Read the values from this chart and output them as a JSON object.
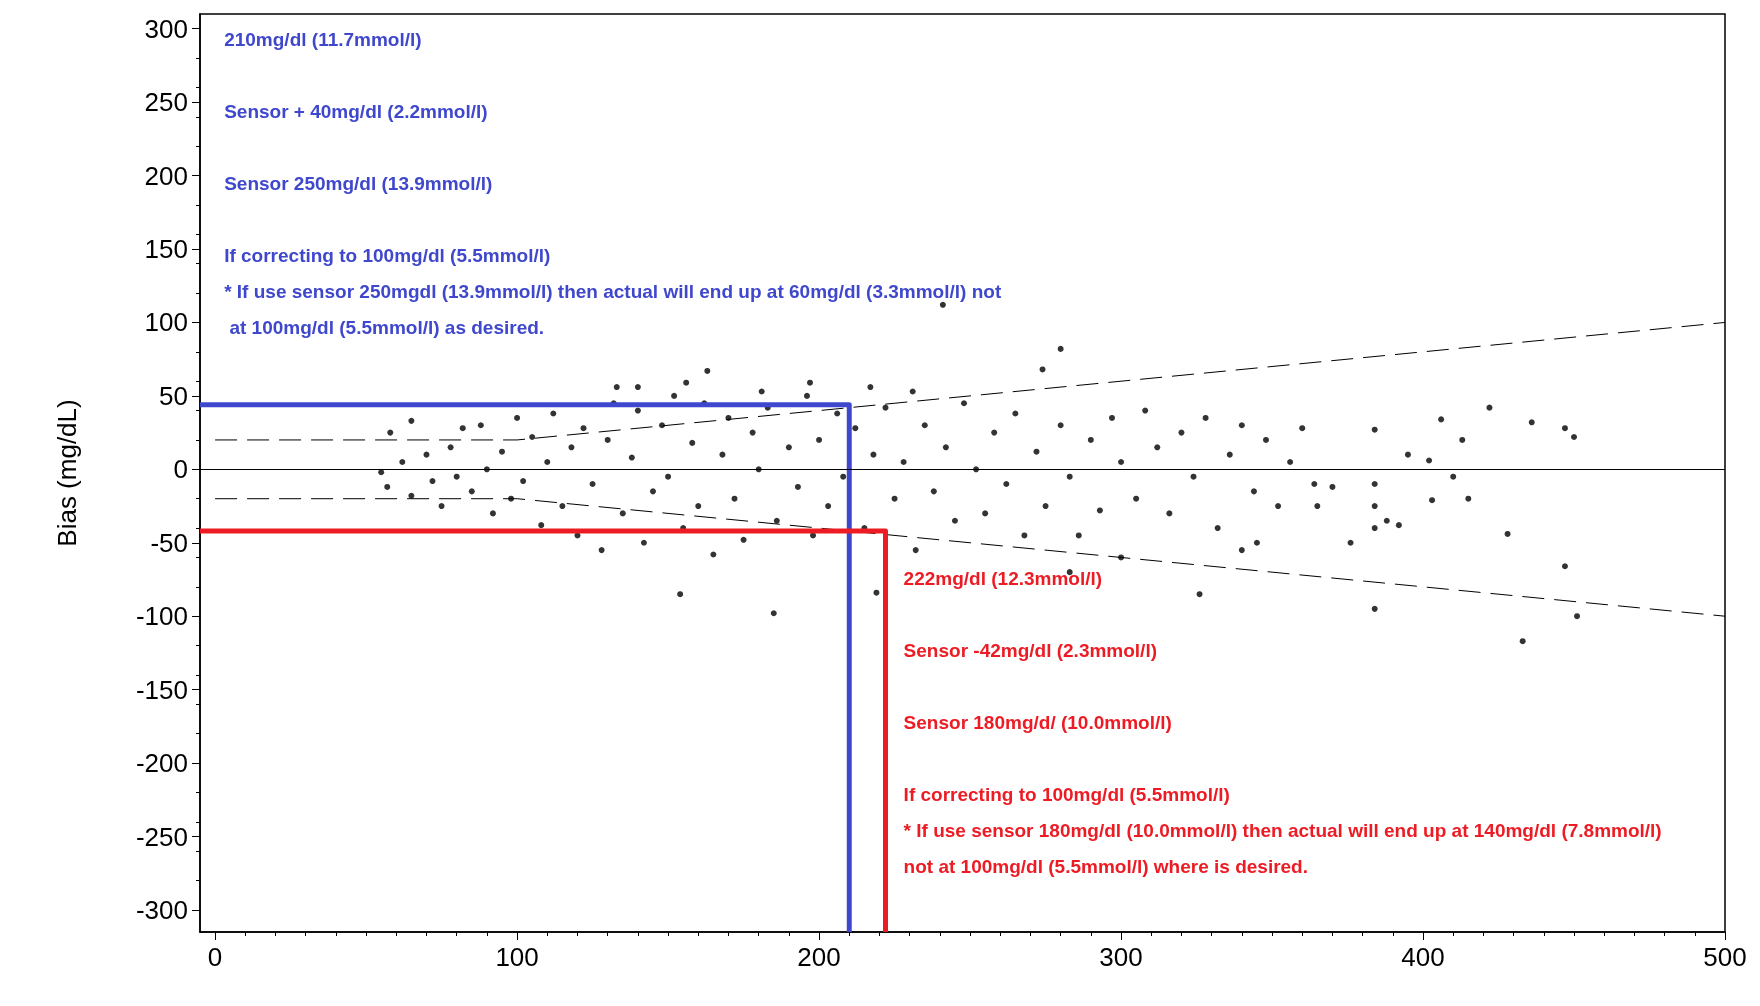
{
  "chart_data": {
    "type": "scatter",
    "ylabel": "Bias (mg/dL)",
    "xlim": [
      -5,
      500
    ],
    "xticks": [
      0,
      100,
      200,
      300,
      400,
      500
    ],
    "ylim": [
      -315,
      310
    ],
    "yticks": [
      -300,
      -250,
      -200,
      -150,
      -100,
      -50,
      0,
      50,
      100,
      150,
      200,
      250,
      300
    ],
    "grid": false,
    "marker": "circle",
    "ref_lines": [
      {
        "axis": "y",
        "value": 0,
        "color": "#000000",
        "line_style": "solid"
      }
    ],
    "series": [
      {
        "color": "#000000",
        "x": [
          55,
          57,
          58,
          62,
          65,
          65,
          70,
          72,
          75,
          78,
          80,
          82,
          85,
          88,
          90,
          92,
          95,
          98,
          100,
          102,
          105,
          108,
          110,
          112,
          115,
          118,
          120,
          122,
          125,
          128,
          130,
          132,
          135,
          138,
          140,
          142,
          145,
          148,
          150,
          152,
          155,
          158,
          160,
          162,
          165,
          168,
          170,
          172,
          175,
          178,
          180,
          183,
          186,
          190,
          193,
          196,
          198,
          200,
          203,
          206,
          208,
          212,
          215,
          218,
          222,
          225,
          228,
          232,
          235,
          238,
          242,
          245,
          248,
          252,
          255,
          258,
          262,
          265,
          268,
          272,
          275,
          280,
          283,
          286,
          290,
          293,
          297,
          300,
          305,
          308,
          312,
          316,
          320,
          324,
          328,
          332,
          336,
          340,
          344,
          348,
          352,
          356,
          360,
          364,
          241,
          280,
          274,
          163,
          156,
          133,
          140,
          181,
          197,
          217,
          231,
          422,
          436,
          406,
          447,
          450,
          413,
          384,
          395,
          402,
          410,
          415,
          384,
          384,
          384,
          388,
          392,
          384,
          403,
          428,
          433,
          447,
          451,
          154,
          185,
          219,
          283,
          300,
          326,
          340,
          345,
          365,
          370,
          376
        ],
        "values": [
          -2,
          -12,
          25,
          5,
          -18,
          33,
          10,
          -8,
          -25,
          15,
          -5,
          28,
          -15,
          30,
          0,
          -30,
          12,
          -20,
          35,
          -8,
          22,
          -38,
          5,
          38,
          -25,
          15,
          -45,
          28,
          -10,
          -55,
          20,
          45,
          -30,
          8,
          40,
          -50,
          -15,
          30,
          -5,
          50,
          -40,
          18,
          -25,
          45,
          -58,
          10,
          35,
          -20,
          -48,
          25,
          0,
          42,
          -35,
          15,
          -12,
          50,
          -45,
          20,
          -25,
          38,
          -5,
          28,
          -40,
          10,
          42,
          -20,
          5,
          -55,
          30,
          -15,
          15,
          -35,
          45,
          0,
          -30,
          25,
          -10,
          38,
          -45,
          12,
          -25,
          30,
          -5,
          -45,
          20,
          -28,
          35,
          5,
          -20,
          40,
          15,
          -30,
          25,
          -5,
          35,
          -40,
          10,
          30,
          -15,
          20,
          -25,
          5,
          28,
          -10,
          112,
          82,
          68,
          67,
          59,
          56,
          56,
          53,
          59,
          56,
          53,
          42,
          32,
          34,
          28,
          22,
          20,
          27,
          10,
          6,
          -5,
          -20,
          -10,
          -25,
          -40,
          -35,
          -38,
          -95,
          -21,
          -44,
          -117,
          -66,
          -100,
          -85,
          -98,
          -84,
          -70,
          -60,
          -85,
          -55,
          -50,
          -25,
          -12,
          -50
        ]
      },
      {
        "type": "line",
        "color": "#000000",
        "line_style": "dashed",
        "marker": "none",
        "x": [
          0,
          100,
          500
        ],
        "values": [
          20,
          20,
          100
        ]
      },
      {
        "type": "line",
        "color": "#000000",
        "line_style": "dashed",
        "marker": "none",
        "x": [
          0,
          100,
          500
        ],
        "values": [
          -20,
          -20,
          -100
        ]
      },
      {
        "type": "line",
        "color": "#3f48cc",
        "line_style": "solid",
        "marker": "none",
        "x": [
          -5,
          210,
          210
        ],
        "values": [
          44,
          44,
          -315
        ]
      },
      {
        "type": "line",
        "color": "#ed1c24",
        "line_style": "solid",
        "marker": "none",
        "x": [
          -5,
          222,
          222
        ],
        "values": [
          -42,
          -42,
          -315
        ]
      }
    ],
    "annotations": [
      "210mg/dl (11.7mmol/l)",
      "Sensor + 40mg/dl (2.2mmol/l)",
      "Sensor 250mg/dl (13.9mmol/l)",
      "If correcting to 100mg/dl (5.5mmol/l)",
      "* If use sensor 250mgdl (13.9mmol/l) then actual will end up at 60mg/dl (3.3mmol/l) not at 100mg/dl (5.5mmol/l) as desired.",
      "222mg/dl (12.3mmol/l)",
      "Sensor -42mg/dl (2.3mmol/l)",
      "Sensor 180mg/d/ (10.0mmol/l)",
      "If correcting to 100mg/dl (5.5mmol/l)",
      "* If use sensor 180mg/dl (10.0mmol/l) then actual will end up at 140mg/dl (7.8mmol/l) not at 100mg/dl (5.5mmol/l) where is desired."
    ]
  }
}
